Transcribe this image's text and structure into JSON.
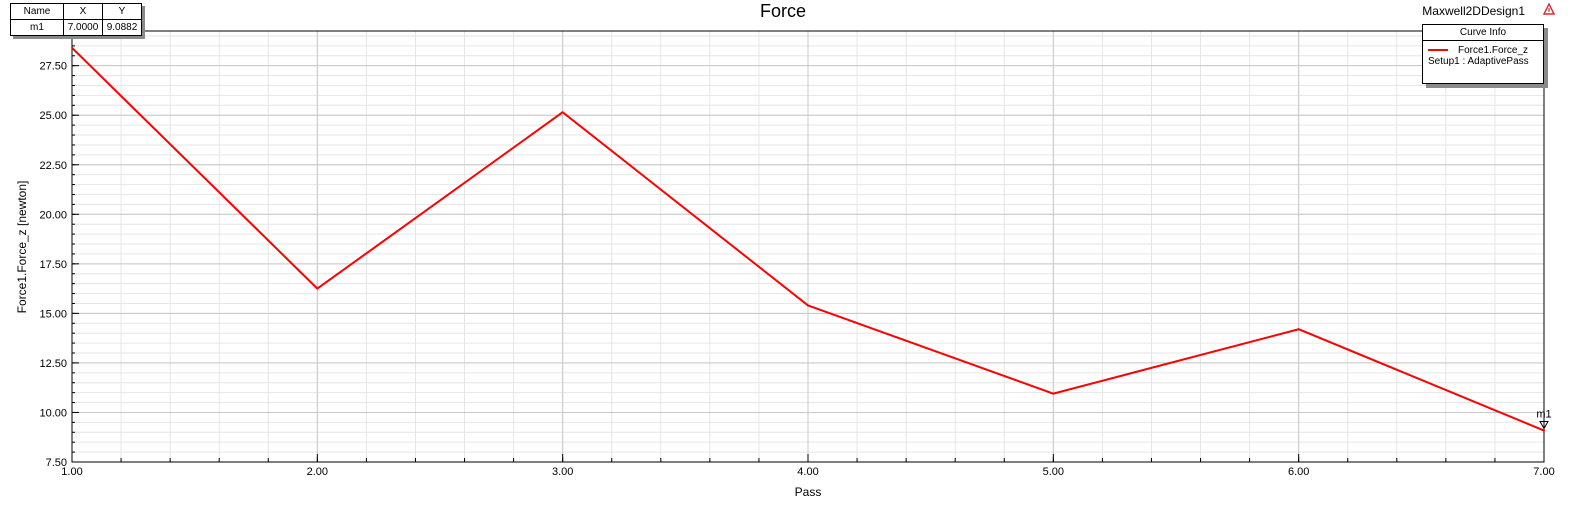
{
  "header": {
    "title": "Force",
    "design_name": "Maxwell2DDesign1"
  },
  "marker_table": {
    "headers": [
      "Name",
      "X",
      "Y"
    ],
    "rows": [
      {
        "name": "m1",
        "x": "7.0000",
        "y": "9.0882"
      }
    ]
  },
  "legend": {
    "title": "Curve Info",
    "entries": [
      {
        "name": "Force1.Force_z",
        "sub": "Setup1 : AdaptivePass",
        "color": "#ff0000"
      }
    ]
  },
  "icons": {
    "corner": "analysis-triangle-icon"
  },
  "chart_data": {
    "type": "line",
    "title": "Force",
    "xlabel": "Pass",
    "ylabel": "Force1.Force_z [newton]",
    "xlim": [
      1.0,
      7.0
    ],
    "ylim": [
      7.5,
      29.25
    ],
    "x_ticks": [
      "1.00",
      "2.00",
      "3.00",
      "4.00",
      "5.00",
      "6.00",
      "7.00"
    ],
    "y_ticks": [
      "7.50",
      "10.00",
      "12.50",
      "15.00",
      "17.50",
      "20.00",
      "22.50",
      "25.00",
      "27.50"
    ],
    "grid": true,
    "legend_position": "top-right",
    "series": [
      {
        "name": "Force1.Force_z",
        "color": "#ff0000",
        "x": [
          1,
          2,
          3,
          4,
          5,
          6,
          7
        ],
        "y": [
          28.4,
          16.25,
          25.15,
          15.4,
          10.95,
          14.2,
          9.0882
        ]
      }
    ],
    "markers": [
      {
        "name": "m1",
        "x": 7.0,
        "y": 9.0882
      }
    ]
  }
}
